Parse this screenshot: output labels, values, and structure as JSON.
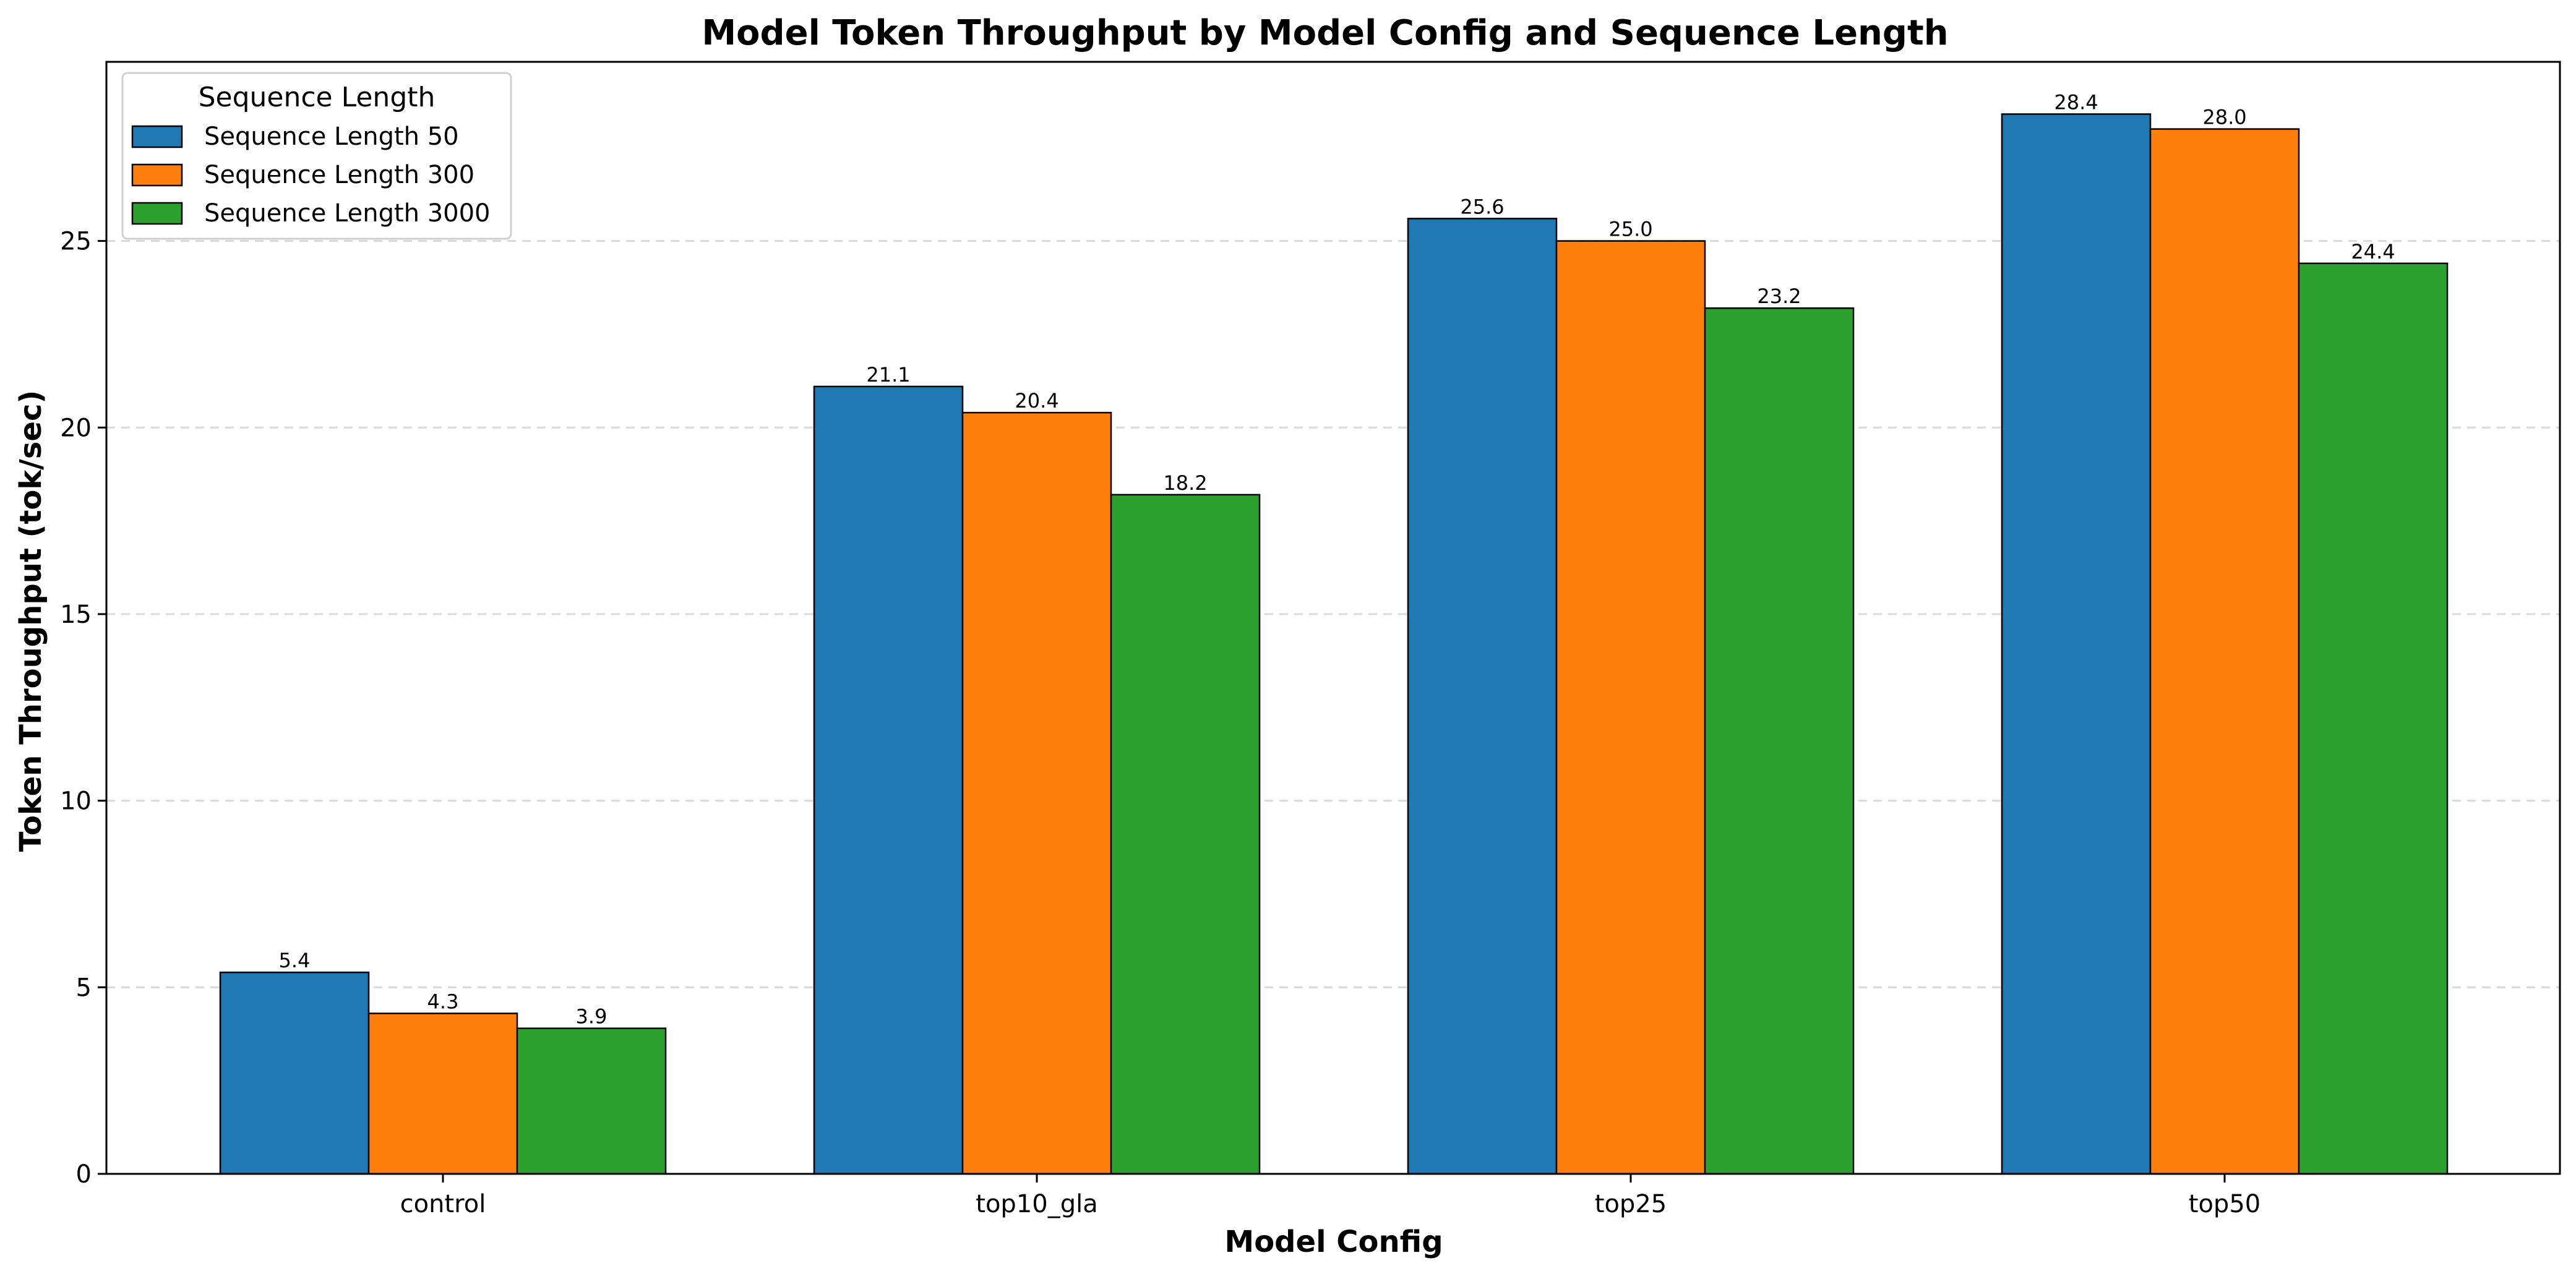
{
  "chart_data": {
    "type": "bar",
    "title": "Model Token Throughput by Model Config and Sequence Length",
    "xlabel": "Model Config",
    "ylabel": "Token Throughput (tok/sec)",
    "categories": [
      "control",
      "top10_gla",
      "top25",
      "top50"
    ],
    "series": [
      {
        "name": "Sequence Length 50",
        "color": "#1f77b4",
        "values": [
          5.4,
          21.1,
          25.6,
          28.4
        ],
        "labels": [
          "5.4",
          "21.1",
          "25.6",
          "28.4"
        ]
      },
      {
        "name": "Sequence Length 300",
        "color": "#ff7f0e",
        "values": [
          4.3,
          20.4,
          25.0,
          28.0
        ],
        "labels": [
          "4.3",
          "20.4",
          "25.0",
          "28.0"
        ]
      },
      {
        "name": "Sequence Length 3000",
        "color": "#2ca02c",
        "values": [
          3.9,
          18.2,
          23.2,
          24.4
        ],
        "labels": [
          "3.9",
          "18.2",
          "23.2",
          "24.4"
        ]
      }
    ],
    "ylim": [
      0,
      29.8
    ],
    "yticks": [
      0,
      5,
      10,
      15,
      20,
      25
    ],
    "ytick_labels": [
      "0",
      "5",
      "10",
      "15",
      "20",
      "25"
    ],
    "grid": "y-dashed",
    "legend": {
      "title": "Sequence Length",
      "position": "top-left"
    }
  }
}
